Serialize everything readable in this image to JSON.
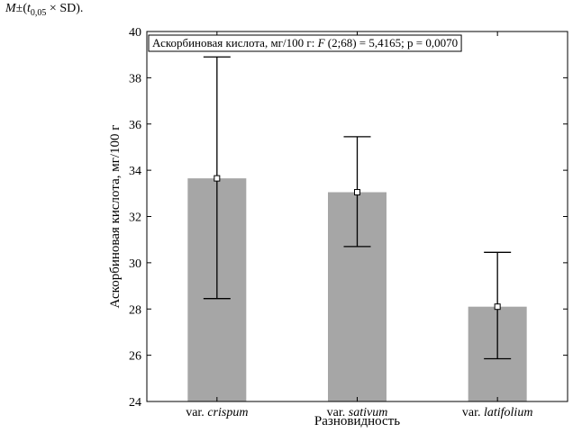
{
  "caption": {
    "m": "M",
    "pm_open": "±(",
    "t": "t",
    "t_sub": "0,05",
    "rest": " × SD)."
  },
  "chart_data": {
    "type": "bar",
    "annotation": "Аскорбиновая кислота, мг/100 г: F (2;68) = 5,4165; p = 0,0070",
    "xlabel": "Разновидность",
    "ylabel": "Аскорбиновая кислота, мг/100 г",
    "ylim": [
      24,
      40
    ],
    "yticks": [
      24,
      26,
      28,
      30,
      32,
      34,
      36,
      38,
      40
    ],
    "categories": [
      {
        "prefix": "var. ",
        "name": "crispum"
      },
      {
        "prefix": "var. ",
        "name": "sativum"
      },
      {
        "prefix": "var. ",
        "name": "latifolium"
      }
    ],
    "values": [
      33.65,
      33.05,
      28.1
    ],
    "error_low": [
      28.45,
      30.7,
      25.85
    ],
    "error_high": [
      38.9,
      35.45,
      30.45
    ],
    "bar_color": "#a6a6a6",
    "grid": false,
    "legend": "none"
  }
}
